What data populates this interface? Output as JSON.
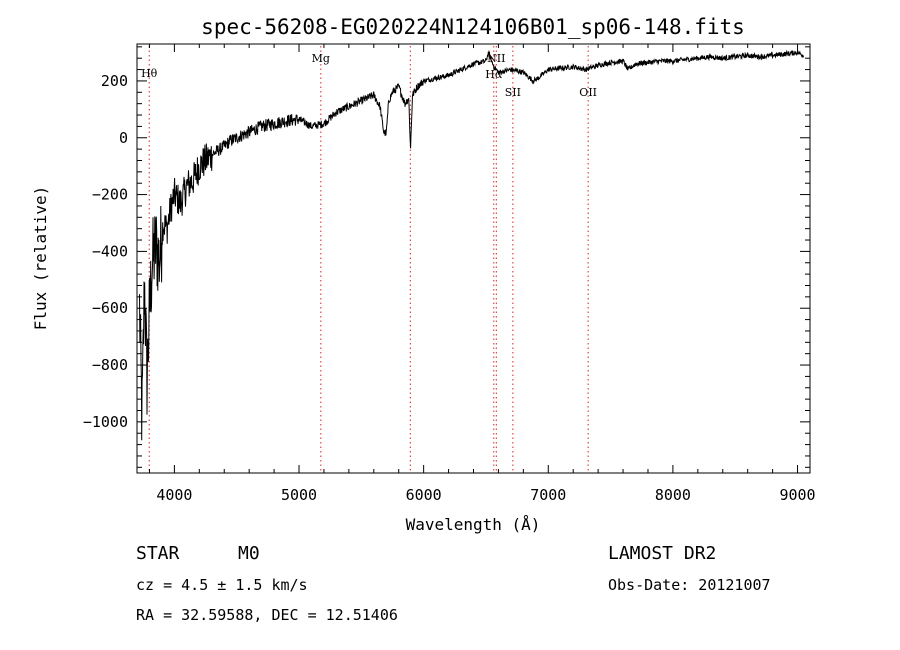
{
  "chart_data": {
    "type": "line",
    "title": "spec-56208-EG020224N124106B01_sp06-148.fits",
    "xlabel": "Wavelength (Å)",
    "ylabel": "Flux (relative)",
    "xlim": [
      3700,
      9100
    ],
    "ylim": [
      -1180,
      330
    ],
    "x_ticks": [
      4000,
      5000,
      6000,
      7000,
      8000,
      9000
    ],
    "y_ticks": [
      200,
      0,
      -200,
      -400,
      -600,
      -800,
      -1000
    ],
    "grid": false,
    "series": [
      {
        "x": [
          3720,
          3740,
          3760,
          3780,
          3800,
          3820,
          3850,
          3880,
          3910,
          3940,
          3970,
          4000,
          4050,
          4100,
          4150,
          4200,
          4250,
          4300,
          4350,
          4400,
          4450,
          4500,
          4600,
          4700,
          4800,
          4900,
          5000,
          5100,
          5200,
          5300,
          5400,
          5500,
          5600,
          5650,
          5680,
          5700,
          5720,
          5750,
          5800,
          5850,
          5880,
          5895,
          5910,
          5950,
          6000,
          6100,
          6200,
          6300,
          6400,
          6500,
          6520,
          6563,
          6600,
          6700,
          6800,
          6880,
          6920,
          7000,
          7100,
          7200,
          7300,
          7400,
          7500,
          7600,
          7640,
          7700,
          7800,
          7900,
          8000,
          8100,
          8200,
          8300,
          8400,
          8500,
          8600,
          8700,
          8800,
          8900,
          9000,
          9050
        ],
        "y": [
          -600,
          -1000,
          -500,
          -850,
          -620,
          -450,
          -380,
          -430,
          -300,
          -320,
          -250,
          -200,
          -230,
          -170,
          -150,
          -100,
          -80,
          -60,
          -45,
          -30,
          -10,
          0,
          20,
          40,
          50,
          60,
          65,
          40,
          50,
          90,
          110,
          130,
          150,
          110,
          20,
          15,
          130,
          160,
          180,
          120,
          140,
          -40,
          150,
          180,
          200,
          210,
          220,
          240,
          260,
          270,
          300,
          250,
          230,
          240,
          230,
          200,
          210,
          240,
          245,
          250,
          240,
          255,
          265,
          270,
          240,
          260,
          265,
          270,
          270,
          275,
          280,
          285,
          280,
          285,
          290,
          285,
          290,
          295,
          300,
          290
        ]
      }
    ],
    "lines": [
      {
        "label": "Hθ",
        "x": 3798
      },
      {
        "label": "Mg",
        "x": 5175
      },
      {
        "label": "",
        "x": 5893
      },
      {
        "label": "NII",
        "x": 6583
      },
      {
        "label": "Hα",
        "x": 6563
      },
      {
        "label": "SII",
        "x": 6716
      },
      {
        "label": "OII",
        "x": 7320
      }
    ]
  },
  "info": {
    "object_type": "STAR",
    "subclass": "M0",
    "survey": "LAMOST DR2",
    "cz": "cz = 4.5 ± 1.5 km/s",
    "obs_date": "Obs-Date: 20121007",
    "coords": "RA =  32.59588, DEC =  12.51406"
  }
}
